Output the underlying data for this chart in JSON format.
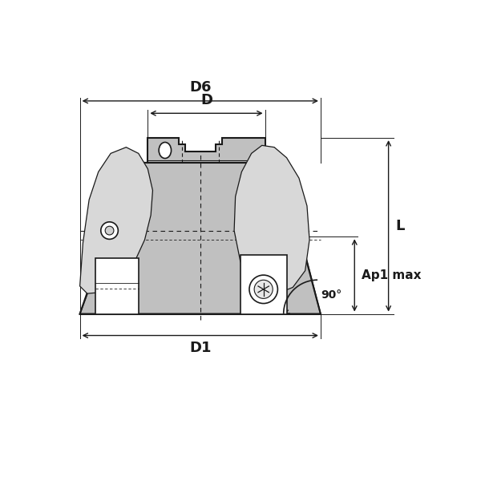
{
  "bg_color": "#ffffff",
  "line_color": "#1a1a1a",
  "gray_fill": "#c0c0c0",
  "dark_gray": "#909090",
  "light_gray": "#d8d8d8",
  "labels": {
    "D6": "D6",
    "D": "D",
    "D1": "D1",
    "L": "L",
    "Ap1_max": "Ap1 max",
    "angle": "90°"
  }
}
